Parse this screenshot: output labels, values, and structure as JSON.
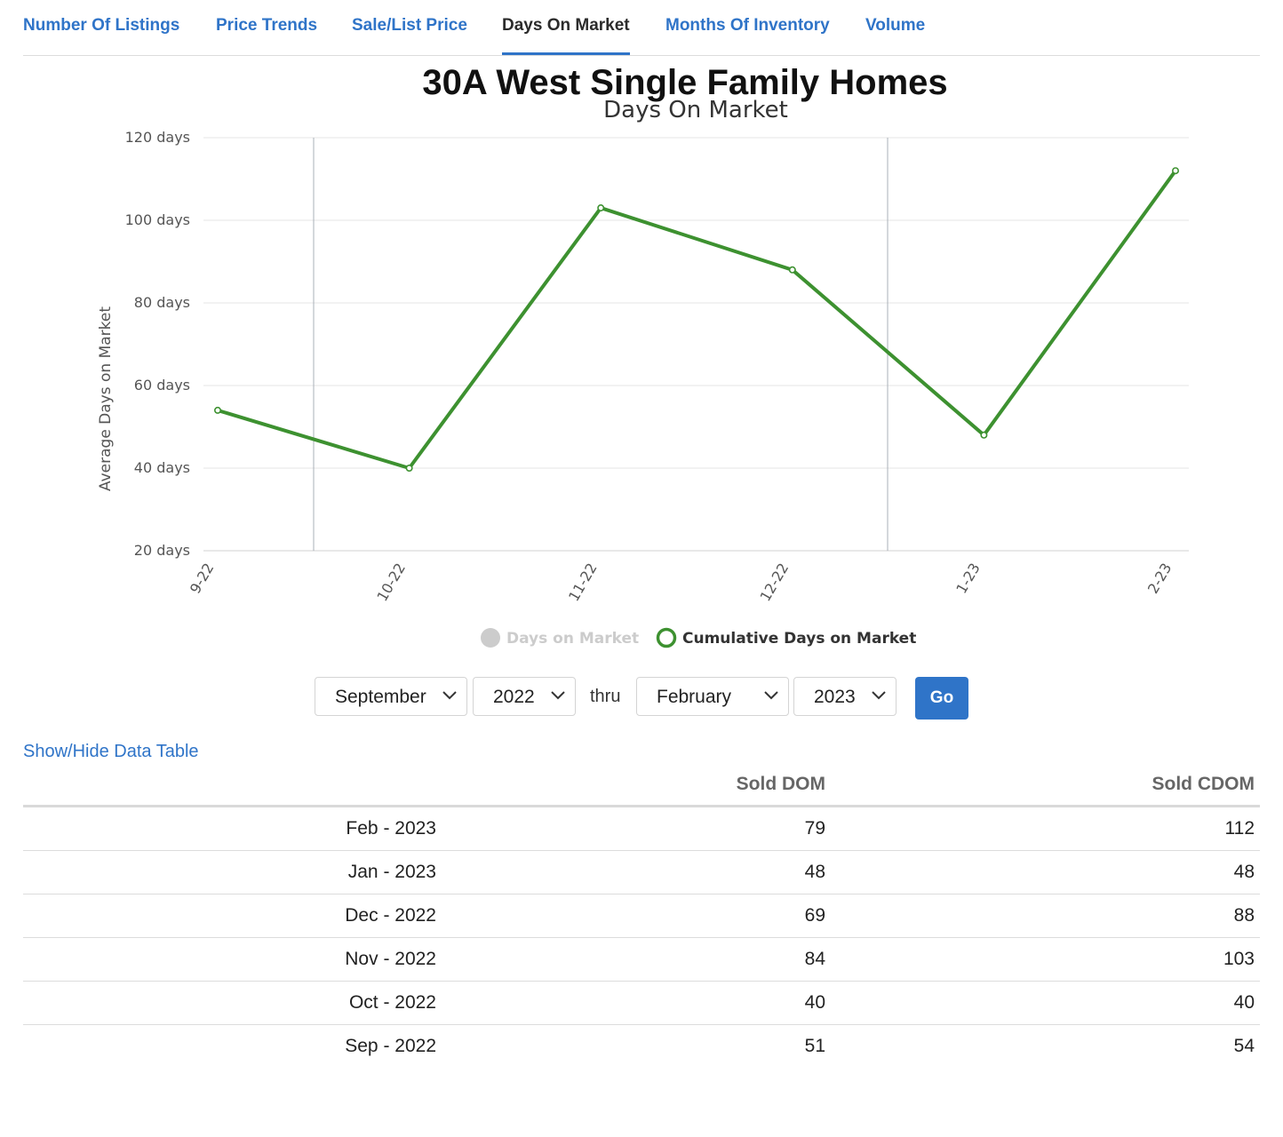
{
  "tabs": [
    {
      "label": "Number Of Listings",
      "active": false
    },
    {
      "label": "Price Trends",
      "active": false
    },
    {
      "label": "Sale/List Price",
      "active": false
    },
    {
      "label": "Days On Market",
      "active": true
    },
    {
      "label": "Months Of Inventory",
      "active": false
    },
    {
      "label": "Volume",
      "active": false
    }
  ],
  "chart_data": {
    "type": "line",
    "title": "30A West Single Family Homes",
    "subtitle": "Days On Market",
    "ylabel": "Average Days on Market",
    "xlabel": "",
    "categories": [
      "9-22",
      "10-22",
      "11-22",
      "12-22",
      "1-23",
      "2-23"
    ],
    "yticks": [
      "20 days",
      "40 days",
      "60 days",
      "80 days",
      "100 days",
      "120 days"
    ],
    "ylim": [
      20,
      120
    ],
    "grid": true,
    "legend_position": "bottom-center",
    "series": [
      {
        "name": "Days on Market",
        "visible": false,
        "color": "#cccccc",
        "values": [
          51,
          40,
          84,
          69,
          48,
          79
        ]
      },
      {
        "name": "Cumulative Days on Market",
        "visible": true,
        "color": "#3d9130",
        "values": [
          54,
          40,
          103,
          88,
          48,
          112
        ]
      }
    ]
  },
  "controls": {
    "start_month": "September",
    "start_year": "2022",
    "separator": "thru",
    "end_month": "February",
    "end_year": "2023",
    "go_label": "Go"
  },
  "toggle_table_label": "Show/Hide Data Table",
  "table": {
    "headers": [
      "",
      "Sold DOM",
      "Sold CDOM"
    ],
    "rows": [
      [
        "Feb - 2023",
        "79",
        "112"
      ],
      [
        "Jan - 2023",
        "48",
        "48"
      ],
      [
        "Dec - 2022",
        "69",
        "88"
      ],
      [
        "Nov - 2022",
        "84",
        "103"
      ],
      [
        "Oct - 2022",
        "40",
        "40"
      ],
      [
        "Sep - 2022",
        "51",
        "54"
      ]
    ]
  }
}
